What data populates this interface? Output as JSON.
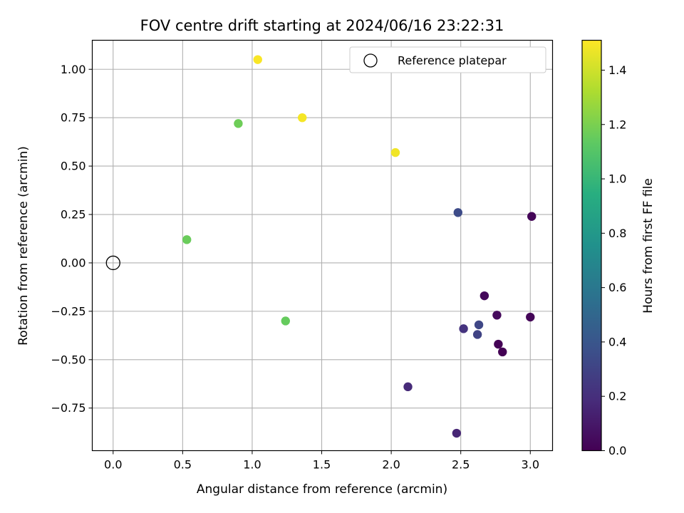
{
  "chart_data": {
    "type": "scatter",
    "title": "FOV centre drift starting at 2024/06/16 23:22:31",
    "xlabel": "Angular distance from reference (arcmin)",
    "ylabel": "Rotation from reference (arcmin)",
    "xlim": [
      -0.15,
      3.16
    ],
    "ylim": [
      -0.97,
      1.15
    ],
    "xticks": [
      "0.0",
      "0.5",
      "1.0",
      "1.5",
      "2.0",
      "2.5",
      "3.0"
    ],
    "yticks": [
      "−0.75",
      "−0.50",
      "−0.25",
      "0.00",
      "0.25",
      "0.50",
      "0.75",
      "1.00"
    ],
    "grid": true,
    "legend": {
      "label": "Reference platepar",
      "placement": "upper right"
    },
    "reference_point": {
      "x": 0.0,
      "y": 0.0
    },
    "colorbar": {
      "label": "Hours from first FF file",
      "cmap": "viridis",
      "range": [
        0.0,
        1.51
      ],
      "ticks": [
        "0.0",
        "0.2",
        "0.4",
        "0.6",
        "0.8",
        "1.0",
        "1.2",
        "1.4"
      ]
    },
    "points": [
      {
        "x": 1.04,
        "y": 1.05,
        "hours": 1.5
      },
      {
        "x": 1.36,
        "y": 0.75,
        "hours": 1.49
      },
      {
        "x": 2.03,
        "y": 0.57,
        "hours": 1.48
      },
      {
        "x": 0.9,
        "y": 0.72,
        "hours": 1.17
      },
      {
        "x": 0.53,
        "y": 0.12,
        "hours": 1.16
      },
      {
        "x": 1.24,
        "y": -0.3,
        "hours": 1.15
      },
      {
        "x": 2.48,
        "y": 0.26,
        "hours": 0.34
      },
      {
        "x": 2.63,
        "y": -0.32,
        "hours": 0.32
      },
      {
        "x": 2.62,
        "y": -0.37,
        "hours": 0.3
      },
      {
        "x": 2.52,
        "y": -0.34,
        "hours": 0.22
      },
      {
        "x": 2.12,
        "y": -0.64,
        "hours": 0.18
      },
      {
        "x": 2.47,
        "y": -0.88,
        "hours": 0.16
      },
      {
        "x": 3.01,
        "y": 0.24,
        "hours": 0.02
      },
      {
        "x": 2.67,
        "y": -0.17,
        "hours": 0.03
      },
      {
        "x": 2.76,
        "y": -0.27,
        "hours": 0.04
      },
      {
        "x": 3.0,
        "y": -0.28,
        "hours": 0.02
      },
      {
        "x": 2.77,
        "y": -0.42,
        "hours": 0.01
      },
      {
        "x": 2.8,
        "y": -0.46,
        "hours": 0.0
      }
    ]
  }
}
